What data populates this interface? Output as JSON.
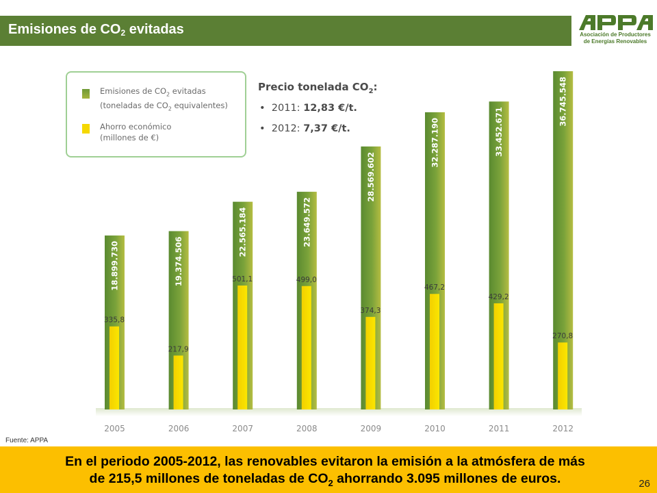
{
  "header": {
    "title_prefix": "Emisiones de CO",
    "title_sub": "2",
    "title_suffix": " evitadas"
  },
  "logo": {
    "mark": "APPA",
    "org_line1": "Asociación de Productores",
    "org_line2": "de Energías Renovables",
    "color": "#4c7a2a"
  },
  "legend": {
    "emissions_line1_a": "Emisiones de CO",
    "emissions_line1_sub": "2",
    "emissions_line1_b": " evitadas",
    "emissions_line2_a": "(toneladas de CO",
    "emissions_line2_sub": "2",
    "emissions_line2_b": " equivalentes)",
    "savings_line1": "Ahorro económico",
    "savings_line2": "(millones de €)"
  },
  "price": {
    "title_a": "Precio tonelada CO",
    "title_sub": "2",
    "title_b": ":",
    "items": [
      {
        "year": "2011:",
        "value": "12,83 €/t."
      },
      {
        "year": "2012:",
        "value": "7,37 €/t."
      }
    ]
  },
  "chart_data": {
    "type": "bar",
    "categories": [
      "2005",
      "2006",
      "2007",
      "2008",
      "2009",
      "2010",
      "2011",
      "2012"
    ],
    "series": [
      {
        "name": "Emisiones de CO2 evitadas (toneladas de CO2 equivalentes)",
        "values": [
          18899730,
          19374506,
          22565184,
          23649572,
          28569602,
          32287190,
          33452671,
          36745548
        ],
        "labels": [
          "18.899.730",
          "19.374.506",
          "22.565.184",
          "23.649.572",
          "28.569.602",
          "32.287.190",
          "33.452.671",
          "36.745.548"
        ],
        "color": "#6f9a36"
      },
      {
        "name": "Ahorro económico (millones de €)",
        "values": [
          335.8,
          217.9,
          501.1,
          499.0,
          374.3,
          467.2,
          429.2,
          270.8
        ],
        "labels": [
          "335,8",
          "217,9",
          "501,1",
          "499,0",
          "374,3",
          "467,2",
          "429,2",
          "270,8"
        ],
        "color": "#f5d800"
      }
    ],
    "ylim_emissions": [
      0,
      36745548
    ],
    "ylim_savings": [
      0,
      501.1
    ],
    "grid": false
  },
  "source": "Fuente: APPA",
  "footer": {
    "line1": "En el periodo 2005-2012, las renovables evitaron la emisión a la atmósfera de más",
    "line2_a": "de 215,5 millones de toneladas de CO",
    "line2_sub": "2",
    "line2_b": " ahorrando 3.095 millones de euros."
  },
  "page_number": "26"
}
